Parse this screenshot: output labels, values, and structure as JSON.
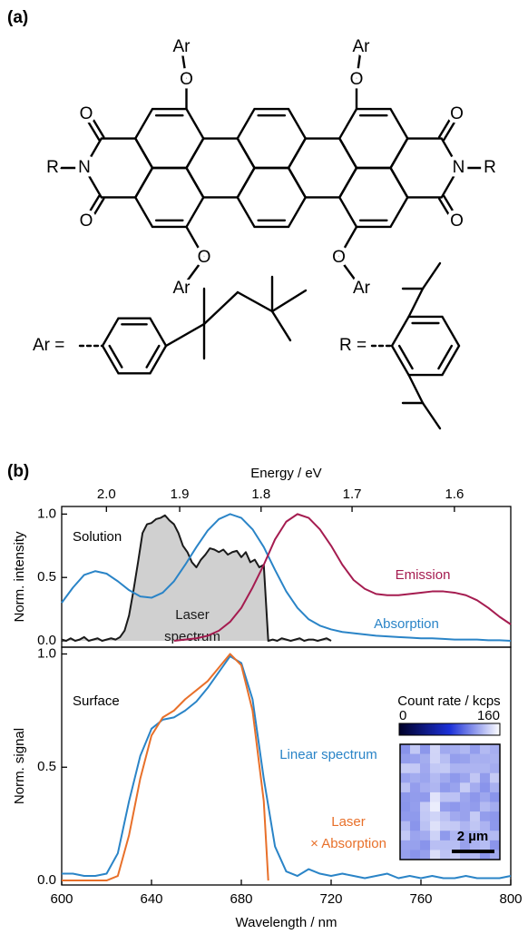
{
  "panel_labels": [
    "(a)",
    "(b)"
  ],
  "structure": {
    "atoms": [
      "Ar",
      "O",
      "Ar",
      "O",
      "O",
      "N",
      "R",
      "O",
      "O",
      "N",
      "R",
      "O",
      "O",
      "Ar",
      "O",
      "Ar"
    ],
    "substituents": [
      "Ar =",
      "R ="
    ]
  },
  "chart_data": [
    {
      "type": "line",
      "x2label": "Energy / eV",
      "x2ticks": [
        {
          "value": 2,
          "label": "2.0"
        },
        1.9,
        1.8,
        1.7,
        1.6
      ],
      "ylabel": "Norm. intensity",
      "xlim": [
        600,
        800
      ],
      "ylim": [
        -0.05,
        1.06
      ],
      "yticks": [
        {
          "value": 0,
          "label": "0.0"
        },
        0.5,
        {
          "value": 1,
          "label": "1.0"
        }
      ],
      "annotation": "Solution",
      "series": [
        {
          "name": "Laser\nspectrum",
          "color": "#1a1a1a",
          "fill": "#d0d0d0",
          "x": [
            600,
            602,
            604,
            606,
            608,
            610,
            612,
            614,
            616,
            618,
            620,
            622,
            624,
            626,
            628,
            630,
            632,
            634,
            636,
            638,
            640,
            642,
            644,
            646,
            648,
            650,
            652,
            654,
            656,
            658,
            660,
            662,
            664,
            666,
            668,
            670,
            672,
            674,
            676,
            678,
            680,
            682,
            684,
            686,
            688,
            690,
            692,
            694,
            696,
            698,
            700,
            702,
            704,
            706,
            708,
            710,
            712,
            714,
            716,
            718,
            720
          ],
          "values": [
            0.01,
            0,
            0.02,
            0,
            0.01,
            0.03,
            0,
            0.01,
            0.02,
            0,
            0.01,
            0.02,
            0.01,
            0.03,
            0.08,
            0.2,
            0.4,
            0.62,
            0.85,
            0.92,
            0.93,
            0.96,
            0.97,
            0.99,
            0.95,
            0.92,
            0.85,
            0.75,
            0.7,
            0.62,
            0.58,
            0.64,
            0.68,
            0.73,
            0.72,
            0.7,
            0.72,
            0.68,
            0.7,
            0.71,
            0.66,
            0.7,
            0.62,
            0.64,
            0.58,
            0.6,
            0,
            0.01,
            0,
            0.02,
            0.01,
            0,
            0.01,
            0.02,
            0,
            0.01,
            0.01,
            0,
            0.01,
            0.02,
            0
          ]
        },
        {
          "name": "Absorption",
          "color": "#2a84c7",
          "x": [
            600,
            605,
            610,
            615,
            620,
            625,
            630,
            635,
            640,
            645,
            650,
            655,
            660,
            665,
            670,
            675,
            680,
            685,
            690,
            695,
            700,
            705,
            710,
            715,
            720,
            725,
            730,
            735,
            740,
            745,
            750,
            755,
            760,
            765,
            770,
            775,
            780,
            785,
            790,
            795,
            800
          ],
          "values": [
            0.3,
            0.42,
            0.52,
            0.55,
            0.53,
            0.47,
            0.4,
            0.35,
            0.34,
            0.38,
            0.47,
            0.6,
            0.74,
            0.87,
            0.96,
            1,
            0.97,
            0.88,
            0.74,
            0.56,
            0.39,
            0.26,
            0.17,
            0.12,
            0.09,
            0.07,
            0.06,
            0.05,
            0.04,
            0.035,
            0.03,
            0.025,
            0.02,
            0.02,
            0.015,
            0.01,
            0.01,
            0.01,
            0.005,
            0.005,
            0
          ]
        },
        {
          "name": "Emission",
          "color": "#a51c50",
          "x": [
            650,
            655,
            660,
            665,
            670,
            675,
            680,
            685,
            690,
            695,
            700,
            705,
            710,
            715,
            720,
            725,
            730,
            735,
            740,
            745,
            750,
            755,
            760,
            765,
            770,
            775,
            780,
            785,
            790,
            795,
            800
          ],
          "values": [
            0,
            0.01,
            0.02,
            0.04,
            0.08,
            0.15,
            0.26,
            0.42,
            0.6,
            0.8,
            0.94,
            1,
            0.97,
            0.88,
            0.75,
            0.6,
            0.48,
            0.41,
            0.37,
            0.36,
            0.36,
            0.37,
            0.38,
            0.39,
            0.39,
            0.38,
            0.36,
            0.32,
            0.26,
            0.19,
            0.13
          ]
        }
      ]
    },
    {
      "type": "line",
      "xlabel": "Wavelength / nm",
      "xlim": [
        600,
        800
      ],
      "xticks": [
        600,
        640,
        680,
        720,
        760,
        800
      ],
      "ylabel": "Norm. signal",
      "ylim": [
        -0.02,
        1.03
      ],
      "yticks": [
        {
          "value": 0,
          "label": "0.0"
        },
        0.5,
        {
          "value": 1,
          "label": "1.0"
        }
      ],
      "annotation": "Surface",
      "series": [
        {
          "name": "Linear spectrum",
          "color": "#2a84c7",
          "x": [
            600,
            605,
            610,
            615,
            620,
            625,
            630,
            635,
            640,
            645,
            650,
            655,
            660,
            665,
            670,
            675,
            680,
            685,
            690,
            695,
            700,
            705,
            710,
            715,
            720,
            725,
            730,
            735,
            740,
            745,
            750,
            755,
            760,
            765,
            770,
            775,
            780,
            785,
            790,
            795,
            800
          ],
          "values": [
            0.03,
            0.03,
            0.02,
            0.02,
            0.03,
            0.12,
            0.35,
            0.55,
            0.67,
            0.71,
            0.72,
            0.75,
            0.79,
            0.85,
            0.92,
            0.99,
            0.96,
            0.8,
            0.45,
            0.15,
            0.04,
            0.02,
            0.05,
            0.03,
            0.02,
            0.03,
            0.02,
            0.01,
            0.02,
            0.03,
            0.01,
            0.02,
            0.01,
            0.02,
            0.01,
            0.01,
            0.02,
            0.01,
            0.01,
            0.01,
            0.02
          ]
        },
        {
          "name": "Laser\n× Absorption",
          "color": "#e8702a",
          "x": [
            600,
            605,
            610,
            615,
            620,
            625,
            630,
            635,
            640,
            645,
            650,
            655,
            660,
            665,
            670,
            675,
            680,
            685,
            690,
            692
          ],
          "values": [
            0,
            0,
            0,
            0,
            0,
            0.02,
            0.2,
            0.45,
            0.64,
            0.72,
            0.75,
            0.8,
            0.84,
            0.88,
            0.94,
            1,
            0.95,
            0.75,
            0.35,
            0
          ]
        }
      ],
      "inset": {
        "title": "Count rate / kcps",
        "clim": [
          0,
          160
        ],
        "cticks": [
          0,
          160
        ],
        "colormap": [
          "#000028",
          "#1b30d8",
          "#ffffff"
        ],
        "scale_bar": "2 µm"
      }
    }
  ]
}
